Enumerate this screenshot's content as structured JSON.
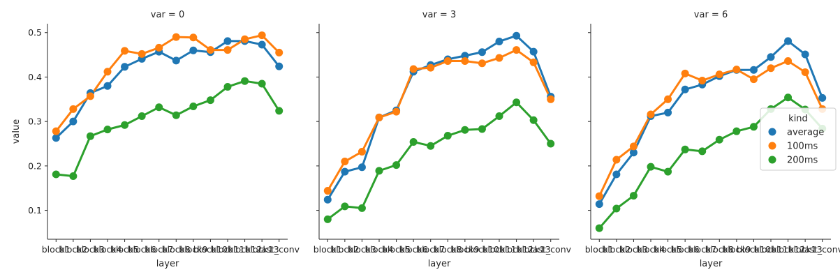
{
  "chart_data": {
    "type": "line",
    "ylabel": "value",
    "xlabel": "layer",
    "ylim": [
      0.035,
      0.52
    ],
    "yticks": [
      0.1,
      0.2,
      0.3,
      0.4,
      0.5
    ],
    "ytick_labels": [
      "0.1",
      "0.2",
      "0.3",
      "0.4",
      "0.5"
    ],
    "categories": [
      "block1",
      "block2",
      "block3",
      "block4",
      "block5",
      "block6",
      "block7",
      "block8",
      "block9",
      "block10",
      "block11",
      "block12",
      "block13",
      "last_conv"
    ],
    "legend": {
      "title": "kind",
      "placement": "center-right"
    },
    "colors": {
      "average": "#1f77b4",
      "100ms": "#ff7f0e",
      "200ms": "#2ca02c",
      "axis": "#262626"
    },
    "panels": [
      {
        "title": "var = 0",
        "series": [
          {
            "name": "average",
            "values": [
              0.263,
              0.3,
              0.364,
              0.38,
              0.423,
              0.441,
              0.457,
              0.437,
              0.46,
              0.456,
              0.481,
              0.481,
              0.473,
              0.424
            ]
          },
          {
            "name": "100ms",
            "values": [
              0.278,
              0.328,
              0.357,
              0.412,
              0.459,
              0.452,
              0.466,
              0.49,
              0.489,
              0.461,
              0.461,
              0.485,
              0.494,
              0.455
            ]
          },
          {
            "name": "200ms",
            "values": [
              0.181,
              0.177,
              0.267,
              0.282,
              0.292,
              0.312,
              0.332,
              0.314,
              0.334,
              0.348,
              0.378,
              0.391,
              0.385,
              0.324
            ]
          }
        ]
      },
      {
        "title": "var = 3",
        "series": [
          {
            "name": "average",
            "values": [
              0.124,
              0.187,
              0.197,
              0.309,
              0.325,
              0.412,
              0.427,
              0.44,
              0.448,
              0.456,
              0.48,
              0.493,
              0.457,
              0.356
            ]
          },
          {
            "name": "100ms",
            "values": [
              0.144,
              0.21,
              0.232,
              0.309,
              0.322,
              0.418,
              0.421,
              0.436,
              0.436,
              0.431,
              0.443,
              0.461,
              0.433,
              0.35
            ]
          },
          {
            "name": "200ms",
            "values": [
              0.08,
              0.109,
              0.105,
              0.189,
              0.202,
              0.254,
              0.245,
              0.268,
              0.281,
              0.283,
              0.312,
              0.343,
              0.303,
              0.25
            ]
          }
        ]
      },
      {
        "title": "var = 6",
        "series": [
          {
            "name": "average",
            "values": [
              0.114,
              0.181,
              0.23,
              0.312,
              0.32,
              0.372,
              0.383,
              0.402,
              0.416,
              0.416,
              0.445,
              0.481,
              0.451,
              0.353
            ]
          },
          {
            "name": "100ms",
            "values": [
              0.132,
              0.214,
              0.244,
              0.316,
              0.35,
              0.408,
              0.392,
              0.406,
              0.417,
              0.395,
              0.42,
              0.436,
              0.411,
              0.328
            ]
          },
          {
            "name": "200ms",
            "values": [
              0.06,
              0.104,
              0.133,
              0.198,
              0.187,
              0.237,
              0.233,
              0.259,
              0.278,
              0.288,
              0.328,
              0.354,
              0.327,
              0.284
            ]
          }
        ]
      }
    ]
  }
}
